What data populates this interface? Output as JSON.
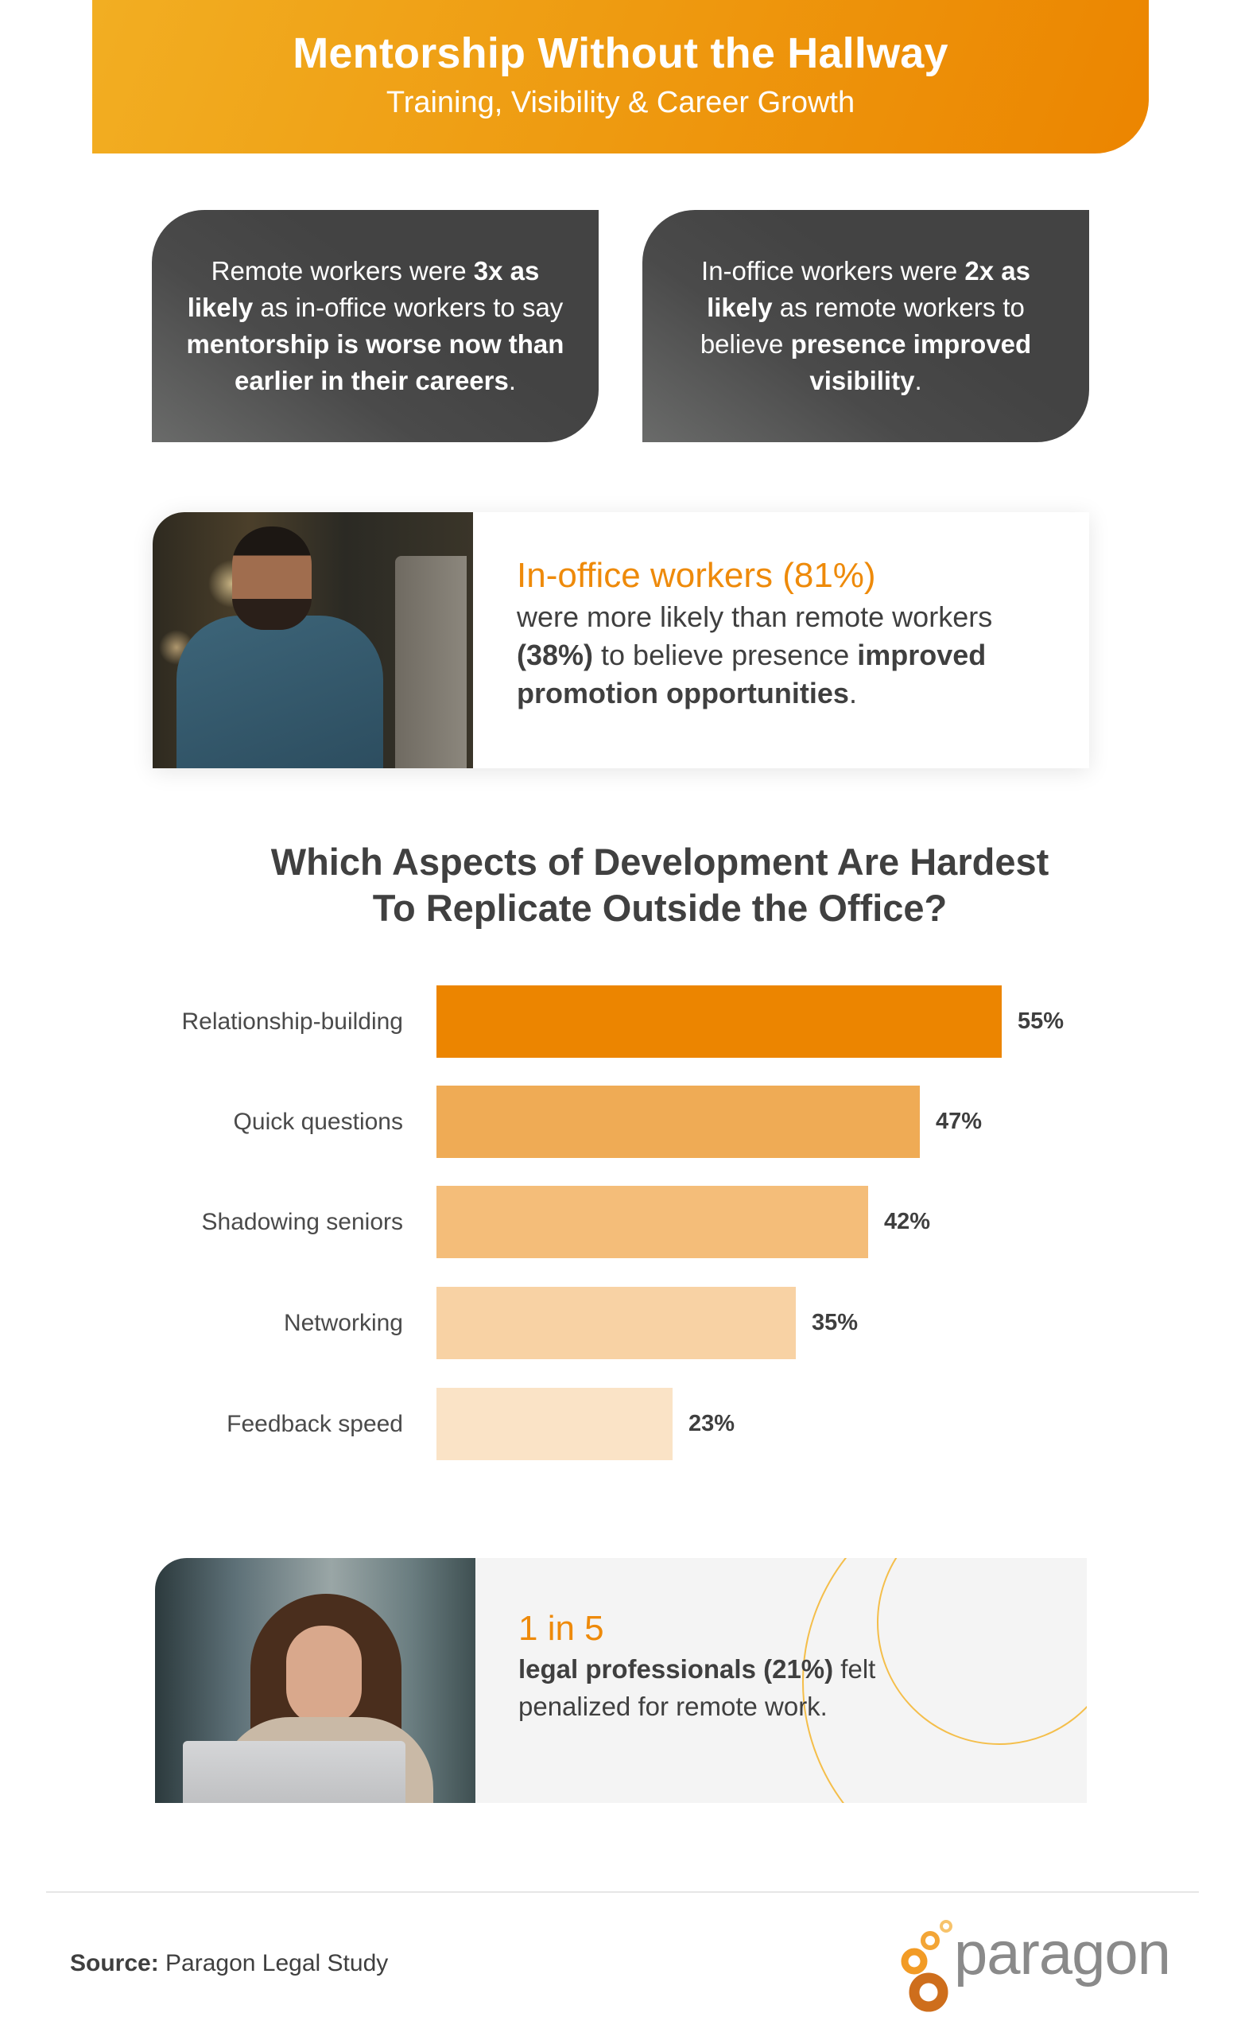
{
  "header": {
    "title": "Mentorship Without the Hallway",
    "subtitle": "Training, Visibility & Career Growth"
  },
  "stat_cards": [
    {
      "segments": [
        {
          "text": "Remote workers were ",
          "bold": false
        },
        {
          "text": "3x as likely",
          "bold": true
        },
        {
          "text": " as in-office workers to say ",
          "bold": false
        },
        {
          "text": "mentorship is worse now than earlier in their careers",
          "bold": true
        },
        {
          "text": ".",
          "bold": false
        }
      ]
    },
    {
      "segments": [
        {
          "text": "In-office workers were ",
          "bold": false
        },
        {
          "text": "2x as likely",
          "bold": true
        },
        {
          "text": " as remote workers to believe ",
          "bold": false
        },
        {
          "text": "presence improved visibility",
          "bold": true
        },
        {
          "text": ".",
          "bold": false
        }
      ]
    }
  ],
  "promo_card": {
    "highlight": "In-office workers (81%)",
    "body_1": "were more likely than remote workers ",
    "body_bold_1": "(38%)",
    "body_2": " to believe presence ",
    "body_bold_2": "improved promotion opportunities",
    "body_3": "."
  },
  "chart_data": {
    "type": "bar",
    "orientation": "horizontal",
    "title": "Which Aspects of Development Are Hardest To Replicate Outside the Office?",
    "title_line_1": "Which Aspects of Development Are Hardest",
    "title_line_2": "To Replicate Outside the Office?",
    "categories": [
      "Relationship-building",
      "Quick questions",
      "Shadowing seniors",
      "Networking",
      "Feedback speed"
    ],
    "values": [
      55,
      47,
      42,
      35,
      23
    ],
    "value_labels": [
      "55%",
      "47%",
      "42%",
      "35%",
      "23%"
    ],
    "colors": [
      "#EC8500",
      "#EFAB55",
      "#F4BD79",
      "#F8D2A4",
      "#FAE3C6"
    ],
    "xlabel": "",
    "ylabel": "",
    "xlim": [
      0,
      55
    ],
    "grid": false,
    "legend": "none"
  },
  "bottom_stat": {
    "highlight": "1 in 5",
    "body_bold": "legal professionals (21%)",
    "body_1": " felt",
    "body_2": "penalized for remote work."
  },
  "footer": {
    "source_label": "Source:",
    "source_value": " Paragon Legal Study",
    "logo_text": "paragon"
  },
  "colors": {
    "accent": "#EC8500",
    "accent_light": "#F2AE22",
    "dark_card": "#434343",
    "text": "#404040"
  }
}
